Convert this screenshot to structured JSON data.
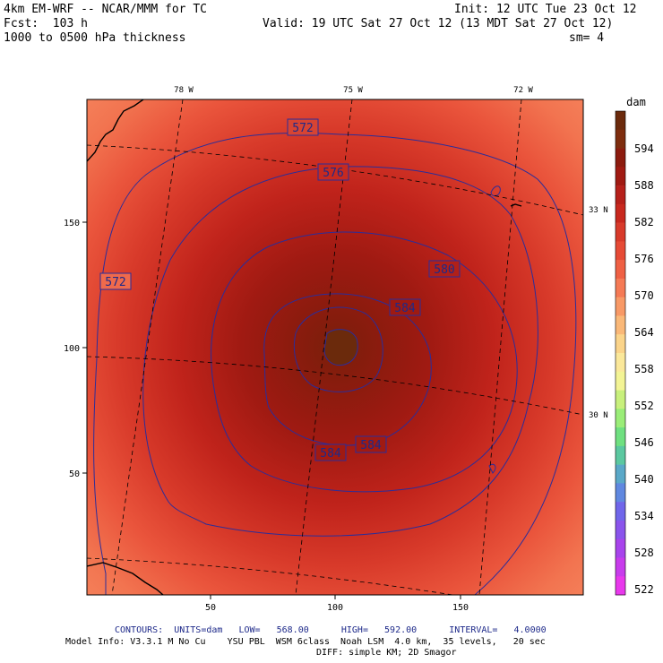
{
  "header": {
    "model": "4km EM-WRF -- NCAR/MMM for TC",
    "init": "Init: 12 UTC Tue 23 Oct 12",
    "fcst": "Fcst:  103 h",
    "valid": "Valid: 19 UTC Sat 27 Oct 12 (13 MDT Sat 27 Oct 12)",
    "field": "1000 to 0500 hPa thickness",
    "smooth": "sm= 4"
  },
  "map": {
    "top_lon_labels": [
      "78 W",
      "75 W",
      "72 W"
    ],
    "right_lat_labels": [
      "33 N",
      "30 N"
    ],
    "x_ticks": [
      "50",
      "100",
      "150"
    ],
    "y_ticks": [
      "150",
      "100",
      "50"
    ],
    "contour_labels": [
      "572",
      "576",
      "580",
      "584",
      "572",
      "584",
      "584"
    ]
  },
  "colorbar": {
    "units": "dam",
    "labels": [
      "594",
      "588",
      "582",
      "576",
      "570",
      "564",
      "558",
      "552",
      "546",
      "540",
      "534",
      "528",
      "522"
    ],
    "colors": [
      "#6b2a0c",
      "#7e2d0e",
      "#8c1b0e",
      "#a01a12",
      "#b6201a",
      "#c8281e",
      "#d83a2a",
      "#e64a35",
      "#ef6044",
      "#f57a55",
      "#f89966",
      "#fab878",
      "#fbd48a",
      "#fbe89a",
      "#f3f495",
      "#c8f07c",
      "#9aed78",
      "#6fe080",
      "#5bc8a0",
      "#5aa8c8",
      "#6088e0",
      "#7066ea",
      "#8a54ec",
      "#a844ec",
      "#c83cec",
      "#e838ec"
    ]
  },
  "footer": {
    "contours": "CONTOURS:  UNITS=dam   LOW=   568.00      HIGH=   592.00      INTERVAL=   4.0000",
    "model_info": "Model Info: V3.3.1 M No Cu    YSU PBL  WSM 6class  Noah LSM  4.0 km,  35 levels,   20 sec",
    "diff": "DIFF: simple KM; 2D Smagor"
  }
}
